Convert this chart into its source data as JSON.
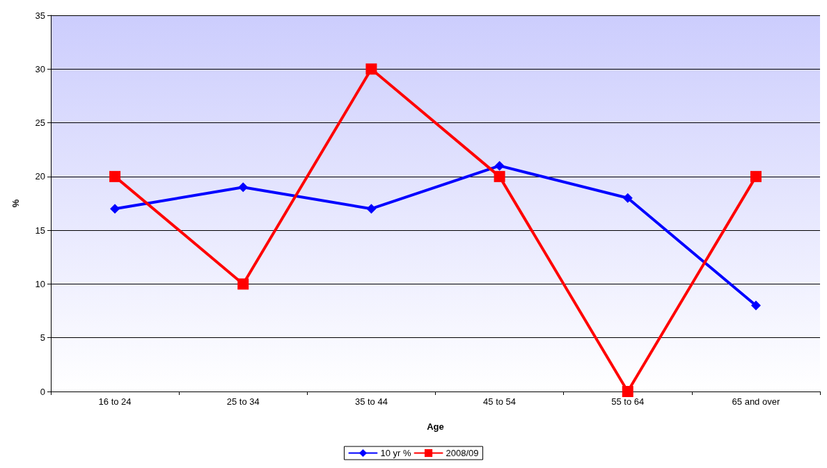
{
  "chart_data": {
    "type": "line",
    "xlabel": "Age",
    "ylabel": "%",
    "categories": [
      "16 to 24",
      "25 to 34",
      "35 to 44",
      "45 to 54",
      "55 to 64",
      "65 and over"
    ],
    "series": [
      {
        "name": "10 yr %",
        "color": "#0000ff",
        "marker": "diamond",
        "values": [
          17,
          19,
          17,
          21,
          18,
          8
        ]
      },
      {
        "name": "2008/09",
        "color": "#ff0000",
        "marker": "square",
        "values": [
          20,
          10,
          30,
          20,
          0,
          20
        ]
      }
    ],
    "ylim": [
      0,
      35
    ],
    "yticks": [
      0,
      5,
      10,
      15,
      20,
      25,
      30,
      35
    ],
    "grid": "y",
    "legend": "bottom",
    "line_style": "solid"
  }
}
